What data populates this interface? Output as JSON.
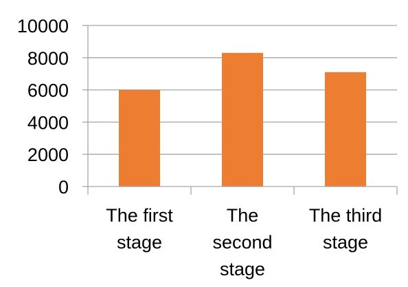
{
  "chart_data": {
    "type": "bar",
    "categories": [
      "The first stage",
      "The second stage",
      "The third stage"
    ],
    "category_label_lines": [
      [
        "The first",
        "stage"
      ],
      [
        "The",
        "second",
        "stage"
      ],
      [
        "The third",
        "stage"
      ]
    ],
    "values": [
      6000,
      8300,
      7100
    ],
    "ylim": [
      0,
      10000
    ],
    "yticks": [
      0,
      2000,
      4000,
      6000,
      8000,
      10000
    ],
    "title": "",
    "xlabel": "",
    "ylabel": "",
    "grid": true,
    "legend": "none",
    "bar_color": "#ED7D31",
    "grid_color": "#A6A6A6",
    "axis_color": "#A6A6A6"
  }
}
